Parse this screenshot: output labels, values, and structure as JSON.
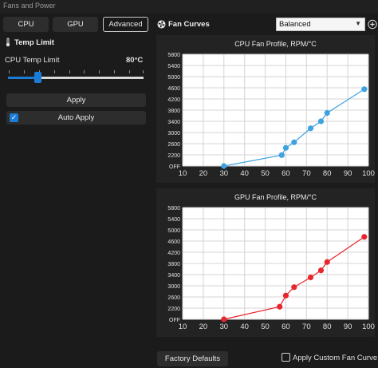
{
  "window": {
    "title": "Fans and Power"
  },
  "tabs": [
    {
      "label": "CPU",
      "active": false
    },
    {
      "label": "GPU",
      "active": false
    },
    {
      "label": "Advanced",
      "active": true
    }
  ],
  "temp_limit": {
    "title": "Temp Limit",
    "cpu_label": "CPU Temp Limit",
    "cpu_value": "80°C",
    "slider_fraction": 0.22,
    "apply_label": "Apply",
    "auto_apply_label": "Auto Apply",
    "auto_apply_checked": true
  },
  "fan_curves": {
    "title": "Fan Curves",
    "profile": "Balanced",
    "factory_defaults_label": "Factory Defaults",
    "apply_custom_label": "Apply Custom Fan Curve",
    "apply_custom_checked": false
  },
  "chart_data": [
    {
      "type": "line",
      "title": "CPU Fan Profile, RPM/°C",
      "color": "#3ea3e0",
      "x": [
        30,
        58,
        60,
        64,
        72,
        77,
        80,
        98
      ],
      "y": [
        0,
        2150,
        2450,
        2650,
        3150,
        3400,
        3700,
        4550
      ],
      "xlim": [
        10,
        100
      ],
      "ylim": [
        0,
        5800
      ],
      "x_ticks": [
        "10",
        "20",
        "30",
        "40",
        "50",
        "60",
        "70",
        "80",
        "90",
        "100"
      ],
      "y_ticks": [
        "OFF",
        "2200",
        "2600",
        "3000",
        "3400",
        "3800",
        "4200",
        "4600",
        "5000",
        "5400",
        "5800"
      ],
      "grid": true
    },
    {
      "type": "line",
      "title": "GPU Fan Profile, RPM/°C",
      "color": "#e8262e",
      "x": [
        30,
        57,
        60,
        64,
        72,
        77,
        80,
        98
      ],
      "y": [
        0,
        2250,
        2650,
        2950,
        3300,
        3550,
        3850,
        4750
      ],
      "xlim": [
        10,
        100
      ],
      "ylim": [
        0,
        5800
      ],
      "x_ticks": [
        "10",
        "20",
        "30",
        "40",
        "50",
        "60",
        "70",
        "80",
        "90",
        "100"
      ],
      "y_ticks": [
        "OFF",
        "2200",
        "2600",
        "3000",
        "3400",
        "3800",
        "4200",
        "4600",
        "5000",
        "5400",
        "5800"
      ],
      "grid": true
    }
  ]
}
